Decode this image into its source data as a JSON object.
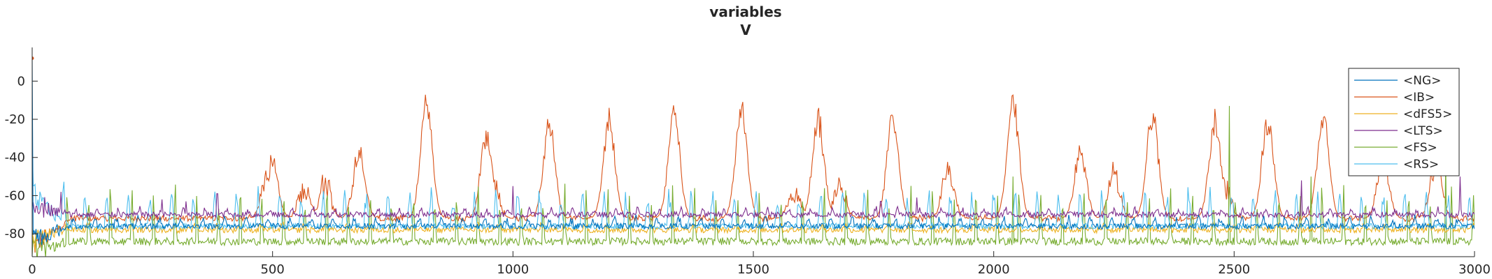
{
  "chart_data": {
    "type": "line",
    "title": "variables",
    "subtitle": "V",
    "xlabel": "",
    "ylabel": "",
    "xlim": [
      0,
      3000
    ],
    "ylim": [
      -92,
      14
    ],
    "xticks": [
      0,
      500,
      1000,
      1500,
      2000,
      2500,
      3000
    ],
    "yticks": [
      0,
      -20,
      -40,
      -60,
      -80
    ],
    "grid": false,
    "legend_position": "top-right",
    "series": [
      {
        "name": "<NG>",
        "color": "#0072BD",
        "base": -76,
        "burst_amp": 4,
        "burst_period": 45,
        "burst_width": 0.25,
        "phase": 10,
        "noise": 1.5,
        "baseline_start": -83,
        "start_spike": 12
      },
      {
        "name": "<IB>",
        "color": "#D95319",
        "base": -72,
        "burst_amp": 1,
        "burst_period": 45,
        "burst_width": 0.1,
        "phase": 0,
        "noise": 1.5,
        "baseline_start": -88,
        "peaks": [
          [
            820,
            -18
          ],
          [
            945,
            -35
          ],
          [
            1075,
            -29
          ],
          [
            1200,
            -28
          ],
          [
            1335,
            -24
          ],
          [
            1475,
            -22
          ],
          [
            1635,
            -26
          ],
          [
            1790,
            -26
          ],
          [
            1905,
            -52
          ],
          [
            2040,
            -17
          ],
          [
            2180,
            -42
          ],
          [
            2330,
            -24
          ],
          [
            2460,
            -28
          ],
          [
            2570,
            -27
          ],
          [
            2685,
            -26
          ],
          [
            2810,
            -46
          ],
          [
            2920,
            -48
          ]
        ],
        "small_peaks": [
          [
            500,
            -50
          ],
          [
            490,
            -55
          ],
          [
            680,
            -42
          ],
          [
            565,
            -63
          ],
          [
            610,
            -60
          ],
          [
            960,
            -62
          ],
          [
            1585,
            -63
          ],
          [
            1680,
            -60
          ],
          [
            2250,
            -55
          ],
          [
            2480,
            -60
          ]
        ]
      },
      {
        "name": "<dFS5>",
        "color": "#EDB120",
        "base": -78,
        "burst_amp": 3,
        "burst_period": 45,
        "burst_width": 0.25,
        "phase": 25,
        "noise": 1.5,
        "baseline_start": -82
      },
      {
        "name": "<LTS>",
        "color": "#7E2F8E",
        "base": -70,
        "burst_amp": 3,
        "burst_period": 45,
        "burst_width": 0.2,
        "phase": 5,
        "noise": 1.5,
        "baseline_start": -64,
        "spikes": [
          [
            60,
            -58
          ],
          [
            180,
            -68
          ],
          [
            270,
            -62
          ],
          [
            320,
            -63
          ],
          [
            385,
            -59
          ],
          [
            1000,
            -55
          ],
          [
            1765,
            -63
          ],
          [
            1840,
            -61
          ],
          [
            2640,
            -52
          ],
          [
            2970,
            -50
          ]
        ]
      },
      {
        "name": "<FS>",
        "color": "#77AC30",
        "base": -84,
        "burst_amp": 26,
        "burst_period": 45,
        "burst_width": 0.12,
        "phase": 20,
        "noise": 2,
        "baseline_start": -88,
        "tall_spikes": [
          [
            2490,
            -13
          ],
          [
            2660,
            -50
          ],
          [
            2940,
            -43
          ],
          [
            2040,
            -50
          ]
        ]
      },
      {
        "name": "<RS>",
        "color": "#4DBEEE",
        "base": -76,
        "burst_amp": 17,
        "burst_period": 45,
        "burst_width": 0.22,
        "phase": 30,
        "noise": 1.5,
        "baseline_start": -60,
        "start_spike": -30
      }
    ]
  }
}
